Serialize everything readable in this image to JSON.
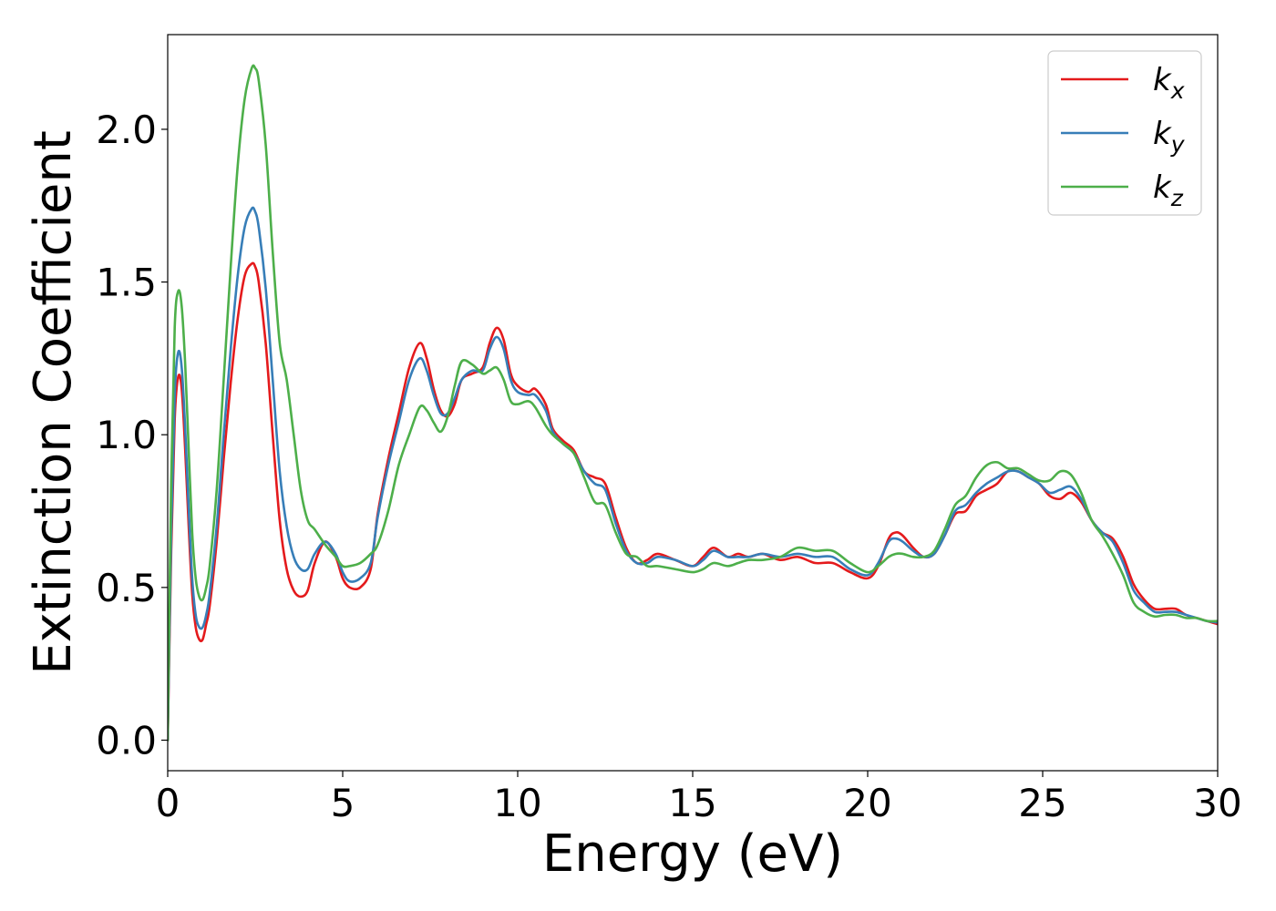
{
  "chart_data": {
    "type": "line",
    "title": "",
    "xlabel": "Energy (eV)",
    "ylabel": "Extinction Coefficient",
    "xlim": [
      0,
      30
    ],
    "ylim": [
      -0.1,
      2.31
    ],
    "xticks": [
      0,
      5,
      10,
      15,
      20,
      25,
      30
    ],
    "xtick_labels": [
      "0",
      "5",
      "10",
      "15",
      "20",
      "25",
      "30"
    ],
    "yticks": [
      0.0,
      0.5,
      1.0,
      1.5,
      2.0
    ],
    "ytick_labels": [
      "0.0",
      "0.5",
      "1.0",
      "1.5",
      "2.0"
    ],
    "grid": false,
    "legend_position": "top-right",
    "series": [
      {
        "name": "k_x",
        "label_main": "k",
        "label_sub": "x",
        "color": "#e41a1c",
        "x": [
          0,
          0.1,
          0.2,
          0.3,
          0.4,
          0.5,
          0.6,
          0.7,
          0.8,
          0.9,
          1.0,
          1.1,
          1.2,
          1.4,
          1.6,
          1.8,
          2.0,
          2.2,
          2.4,
          2.5,
          2.6,
          2.8,
          3.0,
          3.2,
          3.4,
          3.6,
          3.8,
          4.0,
          4.2,
          4.5,
          4.8,
          5.0,
          5.2,
          5.5,
          5.8,
          6.0,
          6.3,
          6.6,
          6.9,
          7.2,
          7.4,
          7.6,
          7.8,
          8.0,
          8.2,
          8.4,
          8.7,
          9.0,
          9.2,
          9.4,
          9.6,
          9.8,
          10.0,
          10.3,
          10.5,
          10.8,
          11.0,
          11.3,
          11.6,
          11.9,
          12.2,
          12.5,
          12.8,
          13.1,
          13.4,
          13.7,
          14.0,
          14.5,
          15.0,
          15.3,
          15.6,
          16.0,
          16.3,
          16.6,
          17.0,
          17.5,
          18.0,
          18.5,
          19.0,
          19.5,
          20.0,
          20.3,
          20.6,
          20.8,
          21.0,
          21.3,
          21.6,
          21.9,
          22.2,
          22.5,
          22.8,
          23.1,
          23.4,
          23.7,
          24.0,
          24.3,
          24.6,
          24.9,
          25.2,
          25.5,
          25.8,
          26.1,
          26.4,
          26.7,
          27.0,
          27.3,
          27.6,
          27.9,
          28.2,
          28.5,
          28.8,
          29.1,
          29.4,
          29.7,
          30.0
        ],
        "y": [
          0.0,
          0.62,
          1.05,
          1.19,
          1.15,
          0.95,
          0.7,
          0.48,
          0.37,
          0.33,
          0.33,
          0.38,
          0.44,
          0.65,
          0.92,
          1.17,
          1.38,
          1.52,
          1.56,
          1.55,
          1.5,
          1.3,
          1.0,
          0.72,
          0.56,
          0.49,
          0.47,
          0.49,
          0.58,
          0.65,
          0.6,
          0.53,
          0.5,
          0.5,
          0.56,
          0.74,
          0.92,
          1.07,
          1.22,
          1.3,
          1.25,
          1.15,
          1.08,
          1.06,
          1.1,
          1.18,
          1.2,
          1.22,
          1.3,
          1.35,
          1.31,
          1.2,
          1.16,
          1.14,
          1.15,
          1.1,
          1.02,
          0.98,
          0.95,
          0.88,
          0.86,
          0.84,
          0.73,
          0.63,
          0.58,
          0.59,
          0.61,
          0.59,
          0.57,
          0.6,
          0.63,
          0.6,
          0.61,
          0.6,
          0.61,
          0.59,
          0.6,
          0.58,
          0.58,
          0.55,
          0.53,
          0.57,
          0.66,
          0.68,
          0.67,
          0.63,
          0.6,
          0.61,
          0.67,
          0.74,
          0.75,
          0.8,
          0.82,
          0.84,
          0.88,
          0.88,
          0.86,
          0.84,
          0.8,
          0.79,
          0.81,
          0.78,
          0.72,
          0.68,
          0.66,
          0.6,
          0.51,
          0.46,
          0.43,
          0.43,
          0.43,
          0.41,
          0.4,
          0.39,
          0.38
        ]
      },
      {
        "name": "k_y",
        "label_main": "k",
        "label_sub": "y",
        "color": "#377eb8",
        "x": [
          0,
          0.1,
          0.2,
          0.3,
          0.4,
          0.5,
          0.6,
          0.7,
          0.8,
          0.9,
          1.0,
          1.1,
          1.2,
          1.4,
          1.6,
          1.8,
          2.0,
          2.2,
          2.4,
          2.5,
          2.6,
          2.8,
          3.0,
          3.2,
          3.4,
          3.6,
          3.8,
          4.0,
          4.2,
          4.5,
          4.8,
          5.0,
          5.2,
          5.5,
          5.8,
          6.0,
          6.3,
          6.6,
          6.9,
          7.2,
          7.4,
          7.6,
          7.8,
          8.0,
          8.2,
          8.4,
          8.7,
          9.0,
          9.2,
          9.4,
          9.6,
          9.8,
          10.0,
          10.3,
          10.5,
          10.8,
          11.0,
          11.3,
          11.6,
          11.9,
          12.2,
          12.5,
          12.8,
          13.1,
          13.4,
          13.7,
          14.0,
          14.5,
          15.0,
          15.3,
          15.6,
          16.0,
          16.3,
          16.6,
          17.0,
          17.5,
          18.0,
          18.5,
          19.0,
          19.5,
          20.0,
          20.3,
          20.6,
          20.8,
          21.0,
          21.3,
          21.6,
          21.9,
          22.2,
          22.5,
          22.8,
          23.1,
          23.4,
          23.7,
          24.0,
          24.3,
          24.6,
          24.9,
          25.2,
          25.5,
          25.8,
          26.1,
          26.4,
          26.7,
          27.0,
          27.3,
          27.6,
          27.9,
          28.2,
          28.5,
          28.8,
          29.1,
          29.4,
          29.7,
          30.0
        ],
        "y": [
          0.0,
          0.68,
          1.13,
          1.27,
          1.22,
          1.02,
          0.76,
          0.53,
          0.41,
          0.37,
          0.37,
          0.41,
          0.48,
          0.7,
          1.0,
          1.28,
          1.52,
          1.68,
          1.74,
          1.73,
          1.68,
          1.48,
          1.18,
          0.88,
          0.7,
          0.6,
          0.56,
          0.56,
          0.61,
          0.65,
          0.61,
          0.55,
          0.52,
          0.53,
          0.58,
          0.73,
          0.9,
          1.04,
          1.18,
          1.25,
          1.21,
          1.13,
          1.07,
          1.07,
          1.12,
          1.18,
          1.21,
          1.21,
          1.28,
          1.32,
          1.28,
          1.18,
          1.14,
          1.13,
          1.13,
          1.08,
          1.01,
          0.97,
          0.94,
          0.88,
          0.84,
          0.82,
          0.71,
          0.62,
          0.58,
          0.58,
          0.6,
          0.59,
          0.57,
          0.59,
          0.62,
          0.6,
          0.6,
          0.6,
          0.61,
          0.6,
          0.61,
          0.6,
          0.6,
          0.56,
          0.54,
          0.58,
          0.65,
          0.66,
          0.65,
          0.62,
          0.6,
          0.61,
          0.67,
          0.75,
          0.77,
          0.81,
          0.84,
          0.86,
          0.88,
          0.88,
          0.86,
          0.84,
          0.81,
          0.82,
          0.83,
          0.79,
          0.72,
          0.68,
          0.65,
          0.58,
          0.49,
          0.45,
          0.42,
          0.42,
          0.42,
          0.41,
          0.4,
          0.39,
          0.385
        ]
      },
      {
        "name": "k_z",
        "label_main": "k",
        "label_sub": "z",
        "color": "#4daf4a",
        "x": [
          0,
          0.1,
          0.2,
          0.3,
          0.4,
          0.5,
          0.6,
          0.7,
          0.8,
          0.9,
          1.0,
          1.1,
          1.2,
          1.4,
          1.6,
          1.8,
          2.0,
          2.2,
          2.4,
          2.5,
          2.6,
          2.8,
          3.0,
          3.2,
          3.4,
          3.6,
          3.8,
          4.0,
          4.2,
          4.5,
          4.8,
          5.0,
          5.2,
          5.5,
          5.8,
          6.0,
          6.3,
          6.6,
          6.9,
          7.2,
          7.4,
          7.6,
          7.8,
          8.0,
          8.2,
          8.4,
          8.7,
          9.0,
          9.2,
          9.4,
          9.6,
          9.8,
          10.0,
          10.3,
          10.5,
          10.8,
          11.0,
          11.3,
          11.6,
          11.9,
          12.2,
          12.5,
          12.8,
          13.1,
          13.4,
          13.7,
          14.0,
          14.5,
          15.0,
          15.3,
          15.6,
          16.0,
          16.3,
          16.6,
          17.0,
          17.5,
          18.0,
          18.5,
          19.0,
          19.5,
          20.0,
          20.3,
          20.6,
          20.8,
          21.0,
          21.3,
          21.6,
          21.9,
          22.2,
          22.5,
          22.8,
          23.1,
          23.4,
          23.7,
          24.0,
          24.3,
          24.6,
          24.9,
          25.2,
          25.5,
          25.8,
          26.1,
          26.4,
          26.7,
          27.0,
          27.3,
          27.6,
          27.9,
          28.2,
          28.5,
          28.8,
          29.1,
          29.4,
          29.7,
          30.0
        ],
        "y": [
          0.0,
          0.85,
          1.35,
          1.47,
          1.42,
          1.23,
          0.95,
          0.68,
          0.53,
          0.47,
          0.46,
          0.5,
          0.57,
          0.82,
          1.18,
          1.55,
          1.88,
          2.1,
          2.2,
          2.2,
          2.16,
          1.95,
          1.6,
          1.3,
          1.18,
          1.0,
          0.82,
          0.72,
          0.69,
          0.64,
          0.6,
          0.57,
          0.57,
          0.58,
          0.61,
          0.64,
          0.75,
          0.9,
          1.0,
          1.09,
          1.08,
          1.04,
          1.01,
          1.06,
          1.16,
          1.24,
          1.23,
          1.2,
          1.21,
          1.22,
          1.18,
          1.11,
          1.1,
          1.11,
          1.09,
          1.03,
          1.0,
          0.97,
          0.94,
          0.86,
          0.78,
          0.77,
          0.68,
          0.61,
          0.6,
          0.57,
          0.57,
          0.56,
          0.55,
          0.56,
          0.58,
          0.57,
          0.58,
          0.59,
          0.59,
          0.6,
          0.63,
          0.62,
          0.62,
          0.58,
          0.55,
          0.57,
          0.6,
          0.61,
          0.61,
          0.6,
          0.6,
          0.62,
          0.69,
          0.77,
          0.8,
          0.86,
          0.9,
          0.91,
          0.89,
          0.89,
          0.87,
          0.85,
          0.85,
          0.88,
          0.87,
          0.81,
          0.72,
          0.67,
          0.61,
          0.54,
          0.45,
          0.42,
          0.405,
          0.41,
          0.41,
          0.4,
          0.4,
          0.39,
          0.39
        ]
      }
    ]
  }
}
